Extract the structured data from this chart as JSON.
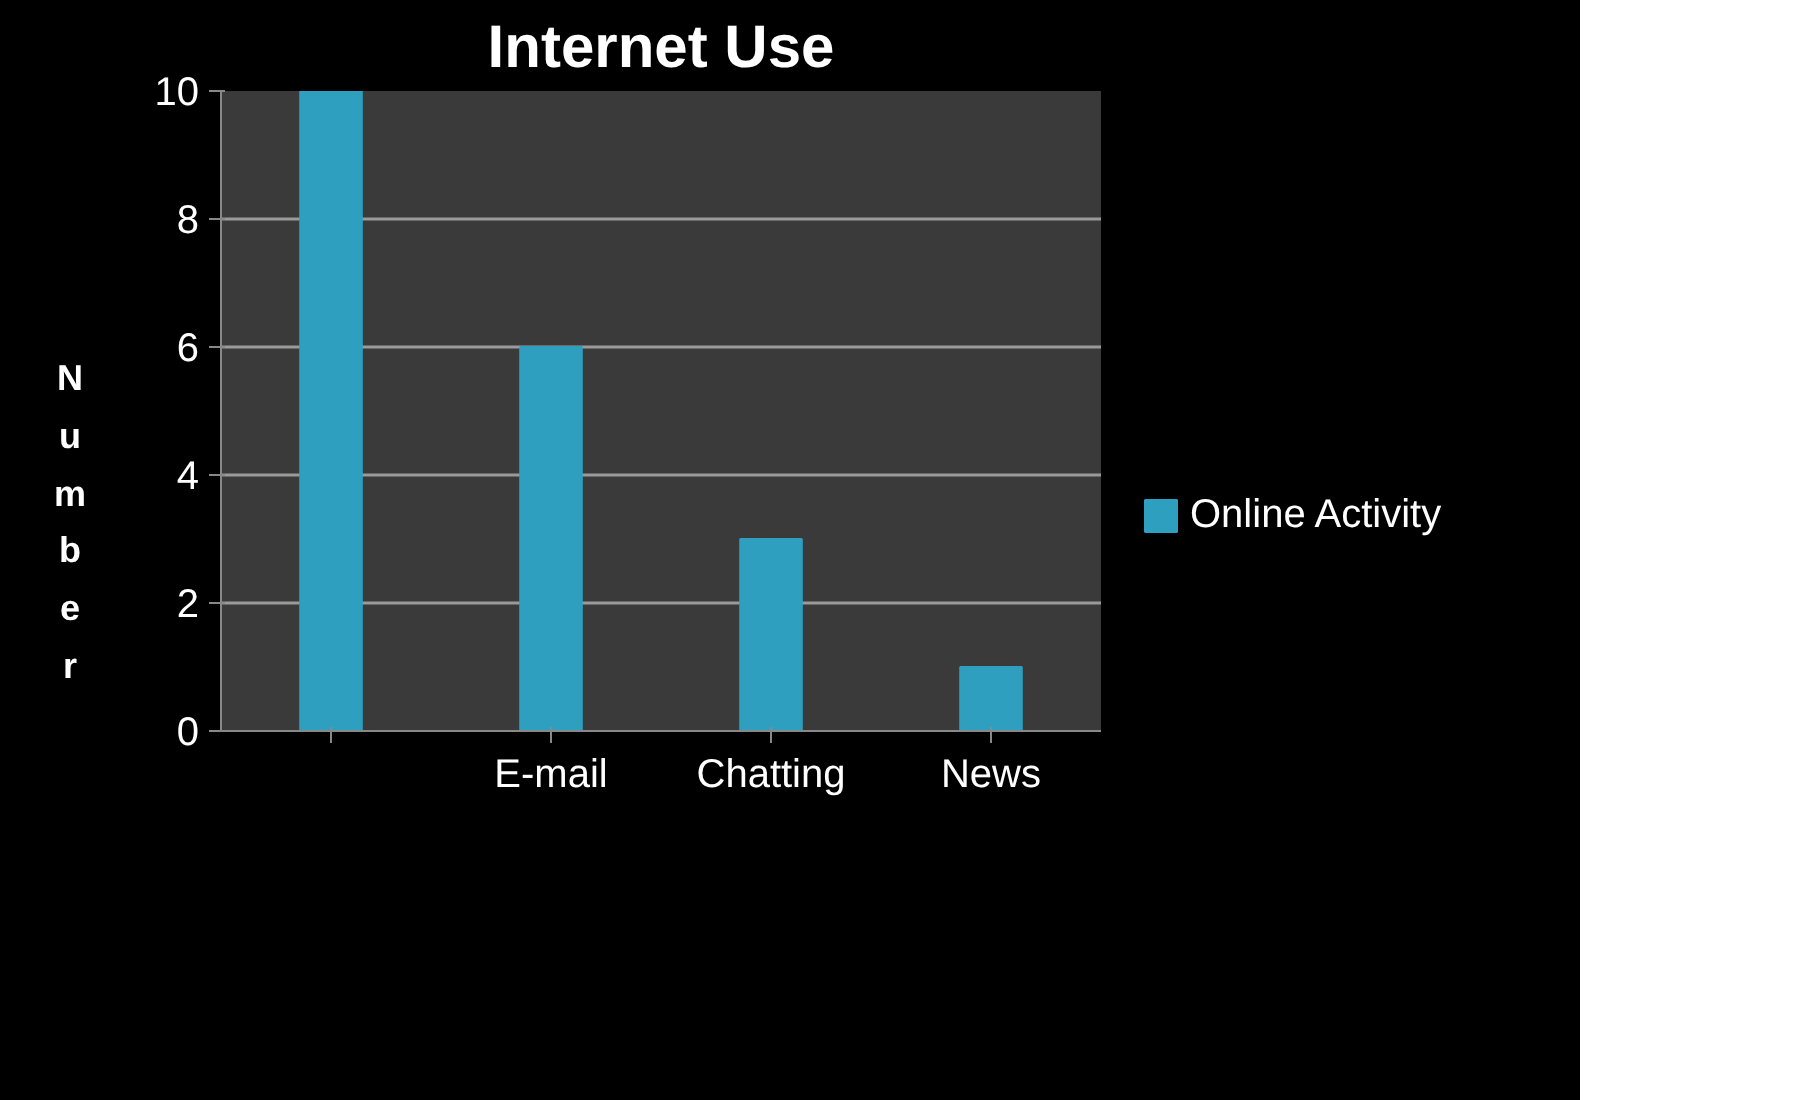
{
  "chart_data": {
    "type": "bar",
    "title": "Internet Use",
    "ylabel": "Number",
    "categories": [
      null,
      "E-mail",
      "Chatting",
      "News"
    ],
    "series": [
      {
        "name": "Online Activity",
        "color": "#2e9fbf",
        "values": [
          10,
          6,
          3,
          1
        ]
      }
    ],
    "ylim": [
      0,
      10
    ],
    "yticks": [
      0,
      2,
      4,
      6,
      8,
      10
    ],
    "grid": "y",
    "legend": "right"
  }
}
